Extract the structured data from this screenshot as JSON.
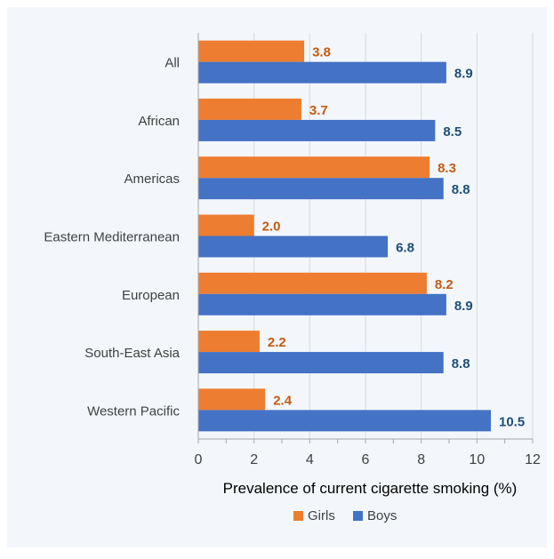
{
  "chart_data": {
    "type": "bar",
    "orientation": "horizontal",
    "categories": [
      "All",
      "African",
      "Americas",
      "Eastern Mediterranean",
      "European",
      "South-East Asia",
      "Western Pacific"
    ],
    "series": [
      {
        "name": "Girls",
        "color": "#ED7D31",
        "label_color": "#C55A11",
        "values": [
          3.8,
          3.7,
          8.3,
          2.0,
          8.2,
          2.2,
          2.4
        ]
      },
      {
        "name": "Boys",
        "color": "#4472C4",
        "label_color": "#1F4E79",
        "values": [
          8.9,
          8.5,
          8.8,
          6.8,
          8.9,
          8.8,
          10.5
        ]
      }
    ],
    "xlabel": "Prevalence of current cigarette smoking (%)",
    "ylabel": "",
    "xlim": [
      0,
      12
    ],
    "xticks": [
      0,
      2,
      4,
      6,
      8,
      10,
      12
    ],
    "grid": "vertical",
    "legend_position": "bottom",
    "data_label_decimals": 1
  }
}
